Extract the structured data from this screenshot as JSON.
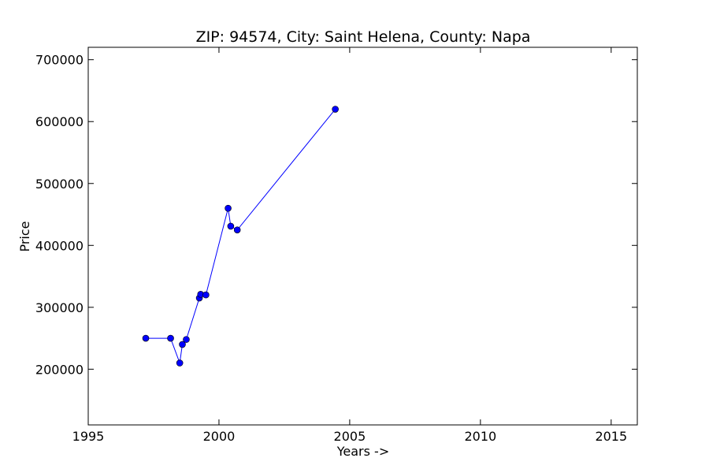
{
  "chart_data": {
    "type": "line",
    "title": "ZIP: 94574, City: Saint Helena, County: Napa",
    "xlabel": "Years ->",
    "ylabel": "Price",
    "xlim": [
      1995,
      2016
    ],
    "ylim": [
      110000,
      720000
    ],
    "xticks": [
      "1995",
      "2000",
      "2005",
      "2010",
      "2015"
    ],
    "yticks": [
      "200000",
      "300000",
      "400000",
      "500000",
      "600000",
      "700000"
    ],
    "grid": false,
    "series": [
      {
        "color": "#0000ff",
        "marker": "circle",
        "points": [
          {
            "x": 1997.2,
            "y": 250000
          },
          {
            "x": 1998.15,
            "y": 250000
          },
          {
            "x": 1998.5,
            "y": 210000
          },
          {
            "x": 1998.6,
            "y": 240000
          },
          {
            "x": 1998.75,
            "y": 248000
          },
          {
            "x": 1999.25,
            "y": 315000
          },
          {
            "x": 1999.3,
            "y": 321000
          },
          {
            "x": 1999.5,
            "y": 320000
          },
          {
            "x": 2000.35,
            "y": 460000
          },
          {
            "x": 2000.45,
            "y": 431000
          },
          {
            "x": 2000.7,
            "y": 425000
          },
          {
            "x": 2004.45,
            "y": 620000
          }
        ]
      }
    ]
  }
}
